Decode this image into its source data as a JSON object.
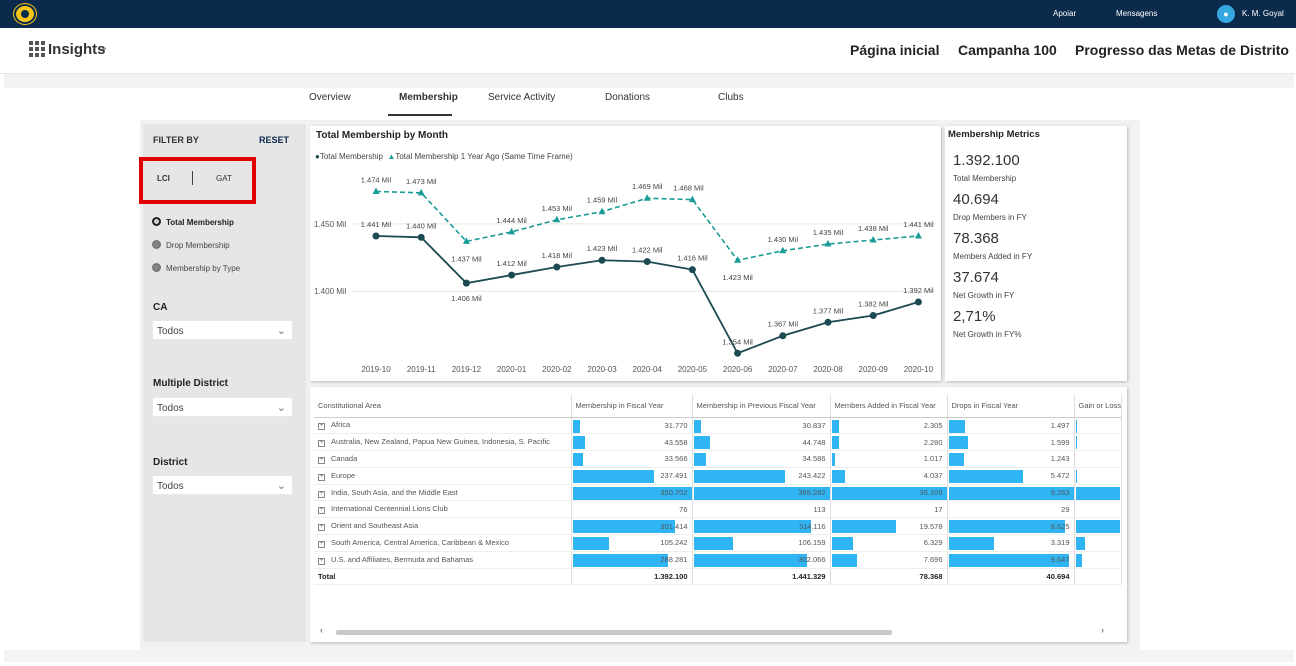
{
  "topbar": {
    "logo_icon": "lions-logo-icon",
    "links": [
      "Apoiar",
      "Mensagens"
    ],
    "user_name": "K. M. Goyal",
    "user_icon": "user-avatar-icon"
  },
  "header": {
    "app_name": "Insights",
    "nav": [
      "Página inicial",
      "Campanha 100",
      "Progresso das Metas de Distrito"
    ]
  },
  "tabs": [
    "Overview",
    "Membership",
    "Service Activity",
    "Donations",
    "Clubs"
  ],
  "active_tab": "Membership",
  "filter": {
    "title": "FILTER BY",
    "reset": "RESET",
    "toggle": [
      "LCI",
      "GAT"
    ],
    "radios": [
      "Total Membership",
      "Drop Membership",
      "Membership by Type"
    ],
    "selected_radio": "Total Membership",
    "slicers": [
      {
        "label": "CA",
        "value": "Todos"
      },
      {
        "label": "Multiple District",
        "value": "Todos"
      },
      {
        "label": "District",
        "value": "Todos"
      }
    ]
  },
  "chart_data": {
    "type": "line",
    "title": "Total Membership by Month",
    "x": [
      "2019-10",
      "2019-11",
      "2019-12",
      "2020-01",
      "2020-02",
      "2020-03",
      "2020-04",
      "2020-05",
      "2020-06",
      "2020-07",
      "2020-08",
      "2020-09",
      "2020-10"
    ],
    "y_ticks": [
      "1.450 Mil",
      "1.400 Mil"
    ],
    "y_tick_values": [
      1450,
      1400
    ],
    "ylim": [
      1349,
      1484
    ],
    "grid": true,
    "legend_position": "top-left",
    "series": [
      {
        "name": "Total Membership",
        "style": "solid-circle",
        "color": "#1b4a52",
        "values": [
          1441,
          1440,
          1406,
          1412,
          1418,
          1423,
          1422,
          1416,
          1354,
          1367,
          1377,
          1382,
          1392
        ],
        "labels": [
          "1.441 Mil",
          "1.440 Mil",
          "1.406 Mil",
          "1.412 Mil",
          "1.418 Mil",
          "1.423 Mil",
          "1.422 Mil",
          "1.416 Mil",
          "1.354 Mil",
          "1.367 Mil",
          "1.377 Mil",
          "1.382 Mil",
          "1.392 Mil"
        ]
      },
      {
        "name": "Total Membership 1 Year Ago (Same Time Frame)",
        "style": "dashed-triangle",
        "color": "#199c96",
        "values": [
          1474,
          1473,
          1437,
          1444,
          1453,
          1459,
          1469,
          1468,
          1423,
          1430,
          1435,
          1438,
          1441
        ],
        "labels": [
          "1.474 Mil",
          "1.473 Mil",
          "1.437 Mil",
          "1.444 Mil",
          "1.453 Mil",
          "1.459 Mil",
          "1.469 Mil",
          "1.468 Mil",
          "1.423 Mil",
          "1.430 Mil",
          "1.435 Mil",
          "1.438 Mil",
          "1.441 Mil"
        ]
      }
    ]
  },
  "metrics": {
    "title": "Membership Metrics",
    "items": [
      {
        "value": "1.392.100",
        "label": "Total Membership"
      },
      {
        "value": "40.694",
        "label": "Drop Members in FY"
      },
      {
        "value": "78.368",
        "label": "Members Added in FY"
      },
      {
        "value": "37.674",
        "label": "Net Growth in FY"
      },
      {
        "value": "2,71%",
        "label": "Net Growth in FY%"
      }
    ]
  },
  "table": {
    "bar_color": "#2fb5f4",
    "headers": [
      "Constitutional Area",
      "Membership in Fiscal Year",
      "Membership in Previous Fiscal Year",
      "Members Added in Fiscal Year",
      "Drops in Fiscal Year",
      "Gain or Loss"
    ],
    "rows": [
      {
        "name": "Africa",
        "cells": [
          "31.770",
          "30.837",
          "2.305",
          "1.497"
        ],
        "bars": [
          0.06,
          0.05,
          0.06,
          0.13,
          0.02
        ]
      },
      {
        "name": "Australia, New Zealand, Papua New Guinea, Indonesia, S. Pacific",
        "cells": [
          "43.558",
          "44.748",
          "2.280",
          "1.599"
        ],
        "bars": [
          0.1,
          0.12,
          0.06,
          0.15,
          0.02
        ]
      },
      {
        "name": "Canada",
        "cells": [
          "33.566",
          "34.586",
          "1.017",
          "1.243"
        ],
        "bars": [
          0.08,
          0.09,
          0.03,
          0.12,
          0.01
        ]
      },
      {
        "name": "Europe",
        "cells": [
          "237.491",
          "243.422",
          "4.037",
          "5.472"
        ],
        "bars": [
          0.68,
          0.67,
          0.11,
          0.59,
          0.03
        ]
      },
      {
        "name": "India, South Asia, and the Middle East",
        "cells": [
          "350.702",
          "365.282",
          "35.109",
          "9.263"
        ],
        "bars": [
          1.0,
          1.0,
          1.0,
          1.0,
          1.0
        ]
      },
      {
        "name": "International Centennial Lions Club",
        "cells": [
          "76",
          "113",
          "17",
          "29"
        ],
        "bars": [
          0,
          0,
          0,
          0,
          0
        ]
      },
      {
        "name": "Orient and Southeast Asia",
        "cells": [
          "301.414",
          "314.116",
          "19.578",
          "8.625"
        ],
        "bars": [
          0.86,
          0.86,
          0.56,
          0.93,
          1.0
        ]
      },
      {
        "name": "South America, Central America, Caribbean & Mexico",
        "cells": [
          "105.242",
          "106.159",
          "6.329",
          "3.319"
        ],
        "bars": [
          0.3,
          0.29,
          0.18,
          0.36,
          0.2
        ]
      },
      {
        "name": "U.S. and Affiliates, Bermuda and Bahamas",
        "cells": [
          "288.281",
          "302.066",
          "7.696",
          "9.647"
        ],
        "bars": [
          0.8,
          0.83,
          0.22,
          0.96,
          0.14
        ]
      }
    ],
    "total": {
      "name": "Total",
      "cells": [
        "1.392.100",
        "1.441.329",
        "78.368",
        "40.694"
      ]
    }
  }
}
